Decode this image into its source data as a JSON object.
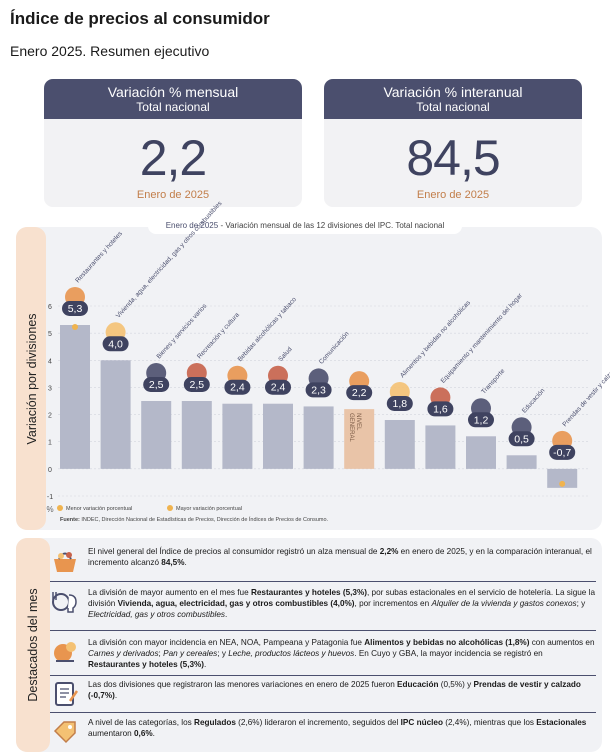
{
  "header": {
    "title": "Índice de precios al consumidor",
    "subtitle": "Enero 2025. Resumen ejecutivo"
  },
  "kpis": [
    {
      "title": "Variación % mensual",
      "scope": "Total nacional",
      "value": "2,2",
      "period": "Enero de 2025"
    },
    {
      "title": "Variación % interanual",
      "scope": "Total nacional",
      "value": "84,5",
      "period": "Enero de 2025"
    }
  ],
  "chart_data": {
    "type": "bar",
    "title_prefix": "Enero de 2025",
    "title": "Variación mensual de las 12 divisiones del IPC. Total nacional",
    "ylabel": "Variación por divisiones",
    "y_unit": "%",
    "ylim": [
      -1,
      6
    ],
    "yticks": [
      "6",
      "5",
      "4",
      "3",
      "2",
      "1",
      "0",
      "-1"
    ],
    "categories": [
      "Restaurantes y hoteles",
      "Vivienda, agua, electricidad, gas y otros combustibles",
      "Bienes y servicios varios",
      "Recreación y cultura",
      "Bebidas alcohólicas y tabaco",
      "Salud",
      "Comunicación",
      "NIVEL GENERAL",
      "Alimentos y bebidas no alcohólicas",
      "Equipamiento y mantenimiento del hogar",
      "Transporte",
      "Educación",
      "Prendas de vestir y calzado"
    ],
    "values": [
      5.3,
      4.0,
      2.5,
      2.5,
      2.4,
      2.4,
      2.3,
      2.2,
      1.8,
      1.6,
      1.2,
      0.5,
      -0.7
    ],
    "value_labels": [
      "5,3",
      "4,0",
      "2,5",
      "2,5",
      "2,4",
      "2,4",
      "2,3",
      "2,2",
      "1,8",
      "1,6",
      "1,2",
      "0,5",
      "-0,7"
    ],
    "general_label": "NIVEL\nGENERAL",
    "legend": [
      {
        "label": "Menor variación porcentual",
        "color": "#f0b34e"
      },
      {
        "label": "Mayor variación porcentual",
        "color": "#f0b34e"
      }
    ],
    "source_bold": "Fuente:",
    "source": "INDEC, Dirección Nacional de Estadísticas de Precios, Dirección de Índices de Precios de Consumo.",
    "colors": {
      "bar": "#b4b8c9",
      "general": "#e9c4a8",
      "badge": "#3f4360",
      "label": "#4b4f6e"
    }
  },
  "highlights": {
    "side_label": "Destacados del mes",
    "items": [
      {
        "icon": "shopping-basket-icon"
      },
      {
        "icon": "restaurant-bulb-icon"
      },
      {
        "icon": "food-icon"
      },
      {
        "icon": "notebook-icon"
      },
      {
        "icon": "tag-icon"
      }
    ],
    "t1": [
      "El nivel general del Índice de precios al consumidor registró un alza mensual de ",
      "2,2%",
      " en enero de 2025, y en la comparación interanual, el incremento alcanzó ",
      "84,5%",
      "."
    ],
    "t2": [
      "La división de mayor aumento en el mes fue ",
      "Restaurantes y hoteles (5,3%)",
      ", por subas estacionales en el servicio de hotelería. La sigue la división ",
      "Vivienda, agua, electricidad, gas y otros combustibles (4,0%)",
      ", por incrementos en ",
      "Alquiler de la vivienda y gastos conexos",
      "; y ",
      "Electricidad, gas y otros combustibles",
      "."
    ],
    "t3": [
      "La división con mayor incidencia en NEA, NOA, Pampeana y Patagonia fue ",
      "Alimentos y bebidas no alcohólicas (1,8%)",
      " con aumentos en ",
      "Carnes y derivados",
      "; ",
      "Pan y cereales",
      "; y ",
      "Leche, productos lácteos y huevos",
      ". En Cuyo y GBA, la mayor incidencia se registró en ",
      "Restaurantes y hoteles (5,3%)",
      "."
    ],
    "t4": [
      "Las dos divisiones que registraron las menores variaciones en enero de 2025 fueron ",
      "Educación",
      " (0,5%) y ",
      "Prendas de vestir y calzado (-0,7%)",
      "."
    ],
    "t5": [
      "A nivel de las categorías, los ",
      "Regulados",
      " (2,6%) lideraron el incremento, seguidos del ",
      "IPC núcleo",
      " (2,4%), mientras que los ",
      "Estacionales",
      " aumentaron ",
      "0,6%",
      "."
    ]
  }
}
